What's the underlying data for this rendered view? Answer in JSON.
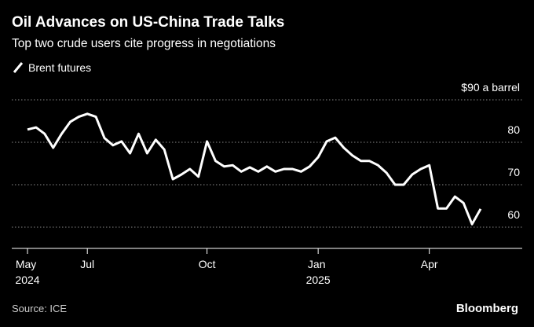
{
  "chart_data": {
    "type": "line",
    "title": "Oil Advances on US-China Trade Talks",
    "subtitle": "Top two crude users cite progress in negotiations",
    "source": "Source: ICE",
    "brand": "Bloomberg",
    "categories": [
      "May 2024",
      null,
      null,
      null,
      null,
      null,
      null,
      "Jul",
      null,
      null,
      null,
      null,
      null,
      null,
      null,
      null,
      null,
      null,
      null,
      null,
      null,
      "Oct",
      null,
      null,
      null,
      null,
      null,
      null,
      null,
      null,
      null,
      null,
      null,
      null,
      "Jan 2025",
      null,
      null,
      null,
      null,
      null,
      null,
      null,
      null,
      null,
      null,
      null,
      null,
      "Apr",
      null,
      null,
      null,
      null,
      null,
      null
    ],
    "series": [
      {
        "name": "Brent futures",
        "color": "#ffffff",
        "values": [
          83,
          83.5,
          82,
          78.7,
          82,
          84.8,
          86,
          86.7,
          86,
          81,
          79.3,
          80.2,
          77.4,
          82,
          77.4,
          80.6,
          78.3,
          71.3,
          72.4,
          73.7,
          71.9,
          80.2,
          75.6,
          74.3,
          74.6,
          73.1,
          74.1,
          73.1,
          74.3,
          73.1,
          73.7,
          73.7,
          73.1,
          74.3,
          76.5,
          80.2,
          81.1,
          78.7,
          76.9,
          75.6,
          75.6,
          74.6,
          72.8,
          70,
          70,
          72.4,
          73.7,
          74.6,
          64.4,
          64.4,
          67.2,
          65.7,
          60.7,
          64.3
        ]
      }
    ],
    "ylim": [
      55,
      90
    ],
    "yticks": [
      {
        "value": 90,
        "label": "$90 a barrel"
      },
      80,
      70,
      60
    ],
    "grid": true
  }
}
